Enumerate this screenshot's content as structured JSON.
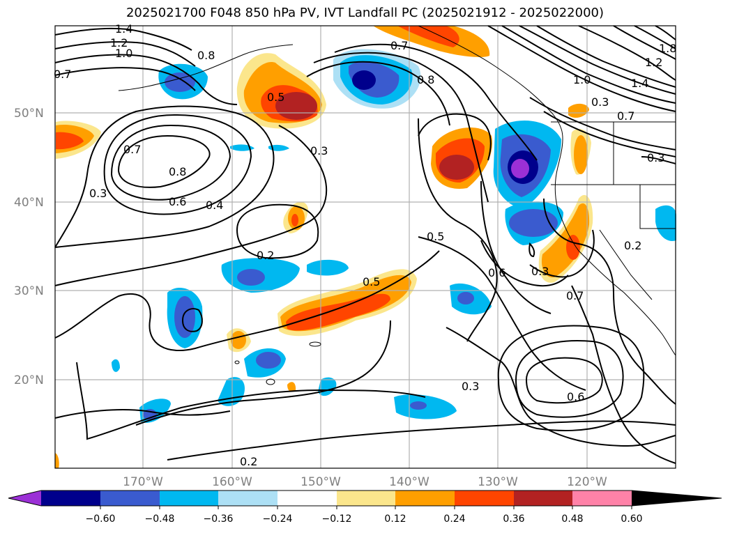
{
  "title": "2025021700 F048 850 hPa PV, IVT Landfall PC (2025021912 - 2025022000)",
  "lat_labels": [
    "50°N",
    "40°N",
    "30°N",
    "20°N"
  ],
  "lon_labels": [
    "170°W",
    "160°W",
    "150°W",
    "140°W",
    "130°W",
    "120°W"
  ],
  "contour_labels": [
    "1.4",
    "1.2",
    "1.0",
    "0.7",
    "0.8",
    "0.5",
    "0.7",
    "0.8",
    "0.3",
    "0.7",
    "0.8",
    "0.6",
    "0.4",
    "0.3",
    "0.2",
    "0.5",
    "0.5",
    "0.6",
    "0.3",
    "0.7",
    "0.2",
    "0.3",
    "0.6",
    "0.3",
    "0.2",
    "1.8",
    "1.2",
    "1.0",
    "1.4",
    "0.7",
    "0.3"
  ],
  "colorbar": {
    "ticks": [
      "−0.60",
      "−0.48",
      "−0.36",
      "−0.24",
      "−0.12",
      "0.12",
      "0.24",
      "0.36",
      "0.48",
      "0.60"
    ],
    "colors": [
      "#9b30d6",
      "#00008c",
      "#3a5bcf",
      "#00b8f0",
      "#ade0f5",
      "#ffffff",
      "#fbe68c",
      "#ff9f00",
      "#ff4500",
      "#b22222",
      "#ff82a8"
    ]
  },
  "fill_colors": {
    "neg_dark": "#00008c",
    "neg_mid": "#3a5bcf",
    "neg_light": "#00b8f0",
    "neg_pale": "#ade0f5",
    "neg_purple": "#9b30d6",
    "pos_pale": "#fbe68c",
    "pos_orange": "#ff9f00",
    "pos_red": "#ff4500",
    "pos_dark": "#b22222"
  }
}
